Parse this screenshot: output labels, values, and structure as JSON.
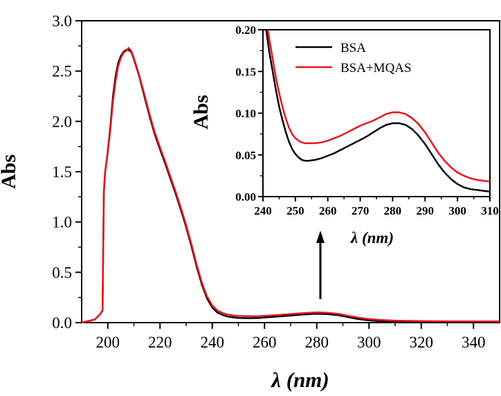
{
  "colors": {
    "bsa": "#000000",
    "bsa_mqas": "#e8141b",
    "axis": "#000000"
  },
  "chart_data": [
    {
      "type": "line",
      "xlabel": "λ (nm)",
      "ylabel": "Abs",
      "xlim": [
        190,
        350
      ],
      "ylim": [
        0,
        3.0
      ],
      "xticks": [
        "200",
        "220",
        "240",
        "260",
        "280",
        "300",
        "320",
        "340"
      ],
      "yticks": [
        "0.0",
        "0.5",
        "1.0",
        "1.5",
        "2.0",
        "2.5",
        "3.0"
      ],
      "annotation": "arrow pointing up from the 280 nm band to the inset",
      "series": [
        {
          "color": "#000000",
          "x": [
            190,
            195,
            197,
            198,
            198.5,
            199,
            200,
            201,
            202,
            203,
            204,
            205,
            206,
            207,
            208,
            209,
            210,
            212,
            214,
            216,
            218,
            220,
            222,
            224,
            226,
            228,
            230,
            232,
            234,
            236,
            238,
            240,
            242,
            244,
            246,
            248,
            250,
            254,
            258,
            262,
            266,
            270,
            274,
            278,
            280,
            284,
            288,
            292,
            296,
            300,
            305,
            310,
            320,
            330,
            340,
            350
          ],
          "y": [
            0.0,
            0.03,
            0.08,
            0.12,
            1.3,
            1.5,
            1.7,
            1.95,
            2.25,
            2.45,
            2.58,
            2.65,
            2.69,
            2.71,
            2.71,
            2.69,
            2.62,
            2.45,
            2.25,
            2.05,
            1.87,
            1.72,
            1.58,
            1.43,
            1.28,
            1.12,
            0.95,
            0.76,
            0.56,
            0.38,
            0.24,
            0.15,
            0.1,
            0.075,
            0.06,
            0.052,
            0.046,
            0.044,
            0.047,
            0.055,
            0.062,
            0.07,
            0.079,
            0.086,
            0.088,
            0.085,
            0.075,
            0.055,
            0.035,
            0.022,
            0.014,
            0.009,
            0.006,
            0.005,
            0.004,
            0.004
          ]
        },
        {
          "color": "#e8141b",
          "x": [
            190,
            195,
            197,
            198,
            198.5,
            199,
            200,
            201,
            202,
            203,
            204,
            205,
            206,
            207,
            208,
            209,
            210,
            212,
            214,
            216,
            218,
            220,
            222,
            224,
            226,
            228,
            230,
            232,
            234,
            236,
            238,
            240,
            242,
            244,
            246,
            248,
            250,
            254,
            258,
            262,
            266,
            270,
            274,
            278,
            280,
            284,
            288,
            292,
            296,
            300,
            305,
            310,
            320,
            330,
            340,
            350
          ],
          "y": [
            0.0,
            0.03,
            0.08,
            0.12,
            1.3,
            1.5,
            1.69,
            1.92,
            2.2,
            2.4,
            2.55,
            2.63,
            2.68,
            2.7,
            2.73,
            2.7,
            2.63,
            2.46,
            2.27,
            2.07,
            1.89,
            1.74,
            1.6,
            1.45,
            1.3,
            1.14,
            0.97,
            0.78,
            0.58,
            0.4,
            0.26,
            0.17,
            0.12,
            0.095,
            0.08,
            0.071,
            0.066,
            0.064,
            0.065,
            0.071,
            0.078,
            0.085,
            0.093,
            0.099,
            0.101,
            0.098,
            0.088,
            0.068,
            0.049,
            0.035,
            0.026,
            0.02,
            0.015,
            0.013,
            0.012,
            0.012
          ]
        }
      ]
    },
    {
      "type": "line",
      "xlabel": "λ (nm)",
      "ylabel": "Abs",
      "xlim": [
        240,
        310
      ],
      "ylim": [
        0,
        0.2
      ],
      "xticks": [
        "240",
        "250",
        "260",
        "270",
        "280",
        "290",
        "300",
        "310"
      ],
      "yticks": [
        "0.00",
        "0.05",
        "0.10",
        "0.15",
        "0.20"
      ],
      "legend_position": "top-right",
      "series": [
        {
          "name": "BSA",
          "color": "#000000",
          "x": [
            241,
            242,
            243,
            244,
            245,
            246,
            247,
            248,
            249,
            250,
            251,
            252,
            253,
            254,
            256,
            258,
            260,
            262,
            264,
            266,
            268,
            270,
            272,
            274,
            276,
            278,
            280,
            282,
            284,
            286,
            288,
            290,
            292,
            294,
            296,
            298,
            300,
            302,
            304,
            306,
            308,
            310
          ],
          "y": [
            0.2,
            0.172,
            0.15,
            0.128,
            0.108,
            0.092,
            0.078,
            0.066,
            0.057,
            0.051,
            0.047,
            0.044,
            0.043,
            0.043,
            0.044,
            0.046,
            0.049,
            0.052,
            0.056,
            0.06,
            0.064,
            0.068,
            0.072,
            0.077,
            0.082,
            0.086,
            0.088,
            0.088,
            0.086,
            0.081,
            0.073,
            0.063,
            0.051,
            0.039,
            0.029,
            0.021,
            0.015,
            0.011,
            0.009,
            0.008,
            0.007,
            0.006
          ]
        },
        {
          "name": "BSA+MQAS",
          "color": "#e8141b",
          "x": [
            241.5,
            242,
            243,
            244,
            245,
            246,
            247,
            248,
            249,
            250,
            251,
            252,
            253,
            254,
            256,
            258,
            260,
            262,
            264,
            266,
            268,
            270,
            272,
            274,
            276,
            278,
            280,
            282,
            284,
            286,
            288,
            290,
            292,
            294,
            296,
            298,
            300,
            302,
            304,
            306,
            308,
            310
          ],
          "y": [
            0.2,
            0.188,
            0.165,
            0.143,
            0.124,
            0.108,
            0.094,
            0.083,
            0.075,
            0.07,
            0.067,
            0.065,
            0.064,
            0.064,
            0.064,
            0.065,
            0.067,
            0.07,
            0.073,
            0.077,
            0.081,
            0.085,
            0.088,
            0.091,
            0.095,
            0.099,
            0.101,
            0.101,
            0.099,
            0.094,
            0.087,
            0.077,
            0.065,
            0.053,
            0.043,
            0.035,
            0.029,
            0.025,
            0.022,
            0.02,
            0.019,
            0.018
          ]
        }
      ]
    }
  ]
}
